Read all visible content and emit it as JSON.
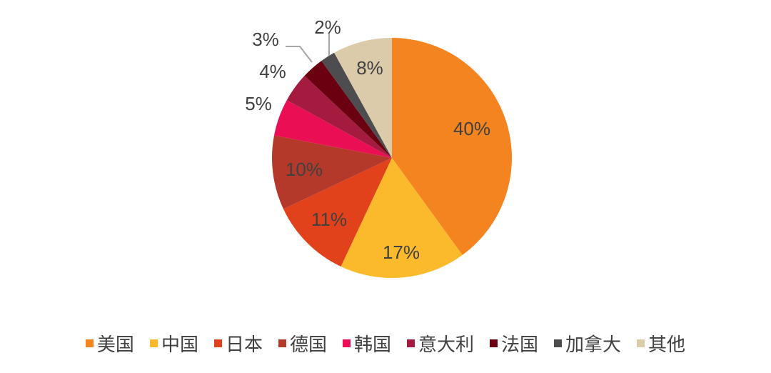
{
  "chart_data": {
    "type": "pie",
    "title": "",
    "start_angle_deg": 0,
    "direction": "clockwise",
    "slices": [
      {
        "name": "美国",
        "value": 40,
        "label": "40%",
        "color": "#F4841F"
      },
      {
        "name": "中国",
        "value": 17,
        "label": "17%",
        "color": "#FBBA2B"
      },
      {
        "name": "日本",
        "value": 11,
        "label": "11%",
        "color": "#E1411B"
      },
      {
        "name": "德国",
        "value": 10,
        "label": "10%",
        "color": "#B4392A"
      },
      {
        "name": "韩国",
        "value": 5,
        "label": "5%",
        "color": "#EA0E55"
      },
      {
        "name": "意大利",
        "value": 4,
        "label": "4%",
        "color": "#A51B40"
      },
      {
        "name": "法国",
        "value": 3,
        "label": "3%",
        "color": "#6B0011"
      },
      {
        "name": "加拿大",
        "value": 2,
        "label": "2%",
        "color": "#4D4D4F"
      },
      {
        "name": "其他",
        "value": 8,
        "label": "8%",
        "color": "#DCCBAA"
      }
    ],
    "legend_position": "bottom"
  }
}
